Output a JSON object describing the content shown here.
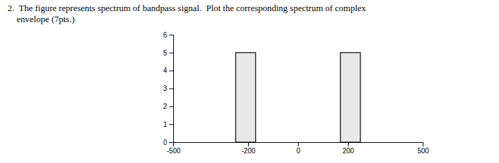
{
  "chart_data": {
    "type": "bar",
    "title": "2.  The figure represents spectrum of bandpass signal.  Plot the corresponding spectrum of complex",
    "subtitle": "    envelope (7pts.)",
    "x": [
      -250,
      170
    ],
    "widths": [
      80,
      80
    ],
    "values": [
      5,
      5
    ],
    "color": "#e8e8e8",
    "xlim": [
      -500,
      500
    ],
    "ylim": [
      0,
      6
    ],
    "xticks": [
      -500,
      -200,
      0,
      200,
      500
    ],
    "yticks": [
      0,
      1,
      2,
      3,
      4,
      5,
      6
    ],
    "grid": false
  }
}
